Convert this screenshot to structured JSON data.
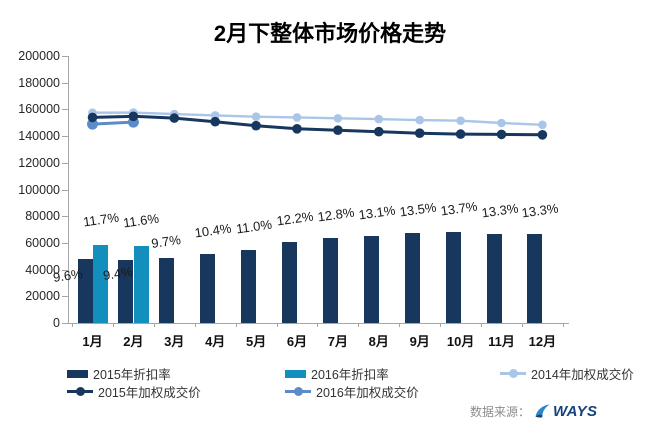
{
  "title": "2月下整体市场价格走势",
  "footer": {
    "source_label": "数据来源：",
    "brand": "WAYS"
  },
  "colors": {
    "bar_2015": "#17375E",
    "bar_2016": "#138FBD",
    "line_2014": "#A9C6E9",
    "line_2015": "#17375E",
    "line_2016": "#5B8CC9",
    "axis": "#A6A6A6",
    "source_text": "#8C8C8C",
    "brand_navy": "#17427A"
  },
  "chart_data": {
    "type": "combo-bar-line",
    "title": "2月下整体市场价格走势",
    "categories": [
      "1月",
      "2月",
      "3月",
      "4月",
      "5月",
      "6月",
      "7月",
      "8月",
      "9月",
      "10月",
      "11月",
      "12月"
    ],
    "bar_scale_per_percent": 5000,
    "bar_series": [
      {
        "name": "2015年折扣率",
        "unit": "%",
        "values": [
          9.6,
          9.4,
          9.7,
          10.4,
          11.0,
          12.2,
          12.8,
          13.1,
          13.5,
          13.7,
          13.3,
          13.3
        ],
        "labels": [
          "9.6%",
          "9.4%",
          "9.7%",
          "10.4%",
          "11.0%",
          "12.2%",
          "12.8%",
          "13.1%",
          "13.5%",
          "13.7%",
          "13.3%",
          "13.3%"
        ]
      },
      {
        "name": "2016年折扣率",
        "unit": "%",
        "values": [
          11.7,
          11.6,
          null,
          null,
          null,
          null,
          null,
          null,
          null,
          null,
          null,
          null
        ],
        "labels": [
          "11.7%",
          "11.6%",
          null,
          null,
          null,
          null,
          null,
          null,
          null,
          null,
          null,
          null
        ]
      }
    ],
    "line_series": [
      {
        "name": "2014年加权成交价",
        "values": [
          157500,
          157600,
          156500,
          155500,
          154500,
          154000,
          153300,
          152700,
          152000,
          151500,
          149800,
          148500
        ]
      },
      {
        "name": "2015年加权成交价",
        "values": [
          154000,
          154800,
          153500,
          150800,
          147800,
          145500,
          144400,
          143300,
          142200,
          141500,
          141300,
          141000
        ]
      },
      {
        "name": "2016年加权成交价",
        "values": [
          149000,
          150500,
          null,
          null,
          null,
          null,
          null,
          null,
          null,
          null,
          null,
          null
        ]
      }
    ],
    "y_axis": {
      "min": 0,
      "max": 200000,
      "step": 20000,
      "ticks": [
        "200000",
        "180000",
        "160000",
        "140000",
        "120000",
        "100000",
        "80000",
        "60000",
        "40000",
        "20000",
        "0"
      ]
    },
    "grid": false,
    "legend_position": "bottom",
    "legend_rows": [
      [
        {
          "label": "2015年折扣率",
          "marker": "bar",
          "color_key": "bar_2015"
        },
        {
          "label": "2016年折扣率",
          "marker": "bar",
          "color_key": "bar_2016"
        },
        {
          "label": "2014年加权成交价",
          "marker": "line",
          "color_key": "line_2014"
        }
      ],
      [
        {
          "label": "2015年加权成交价",
          "marker": "line",
          "color_key": "line_2015"
        },
        {
          "label": "2016年加权成交价",
          "marker": "line",
          "color_key": "line_2016"
        }
      ]
    ]
  }
}
